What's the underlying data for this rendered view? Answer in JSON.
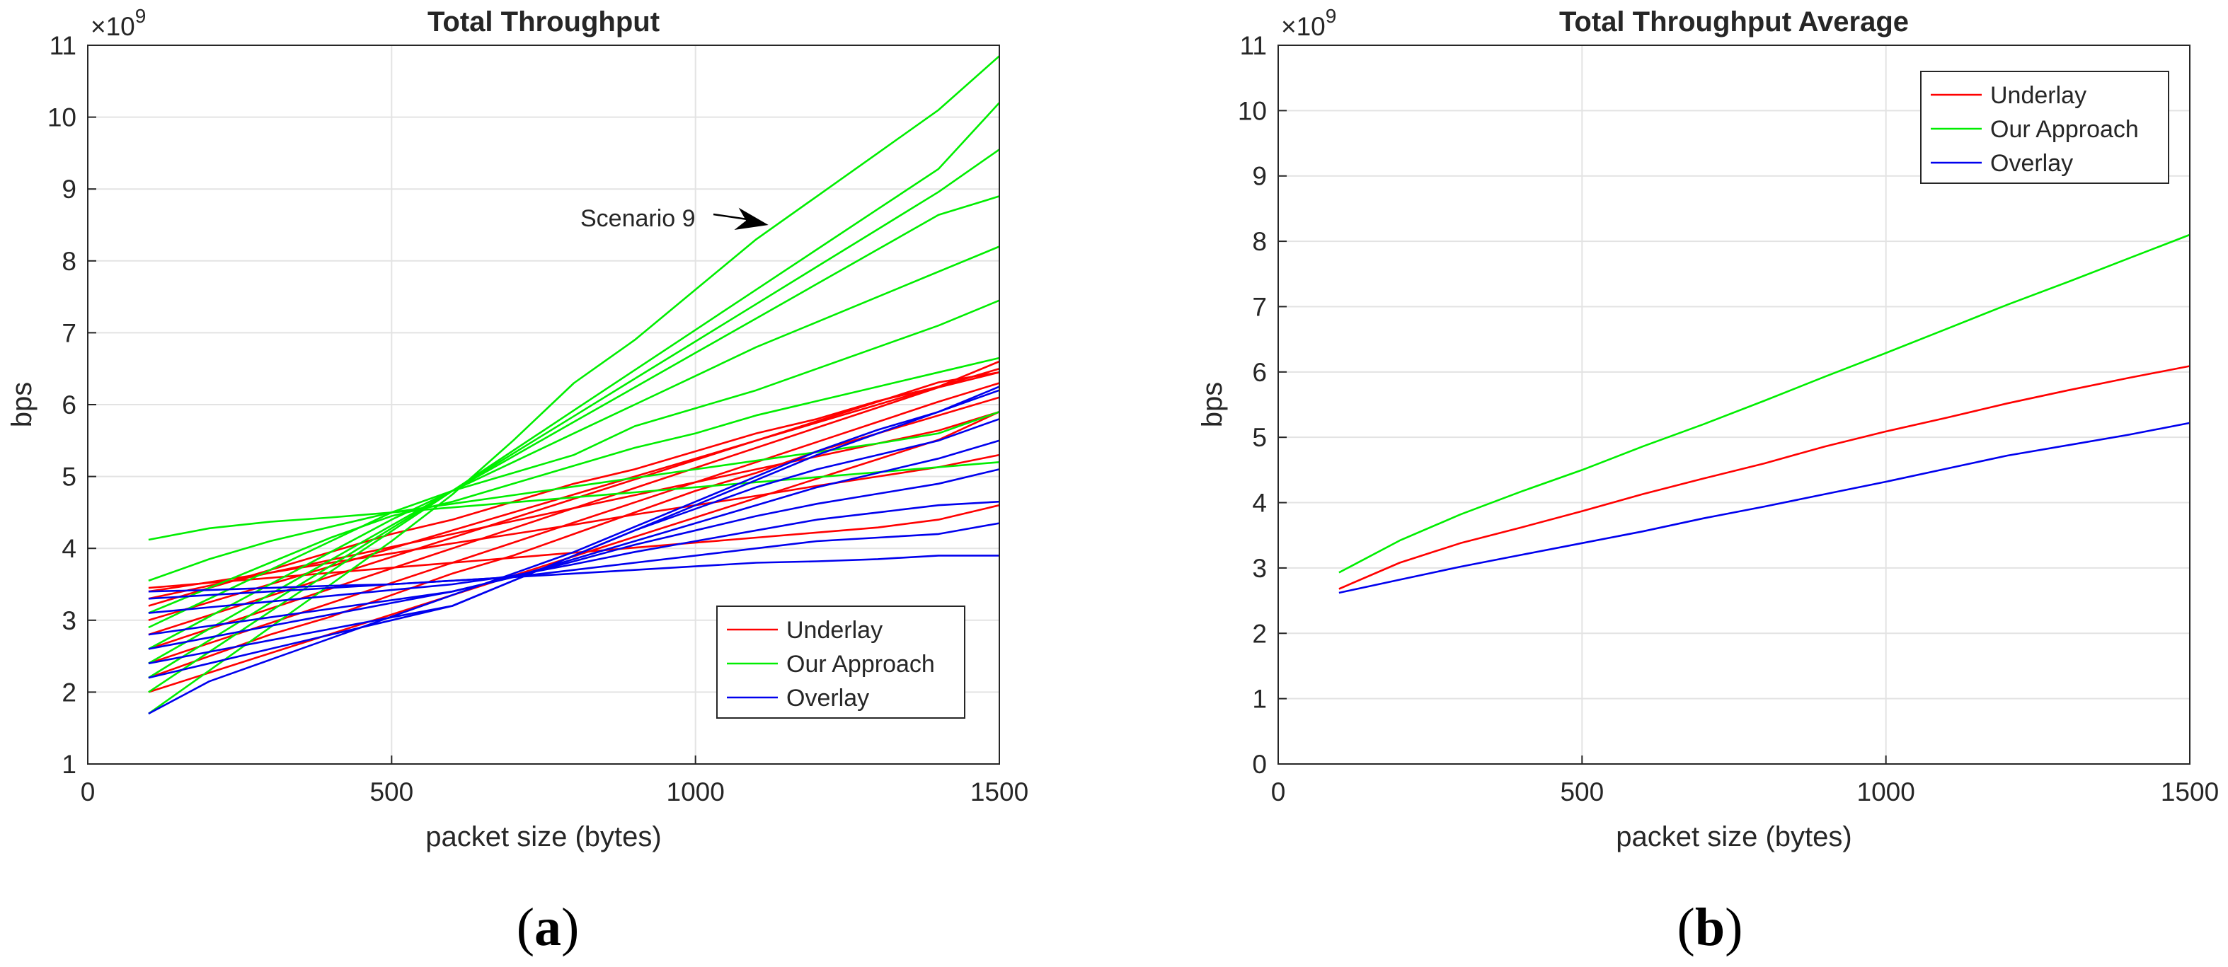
{
  "colors": {
    "underlay": "#ff0000",
    "approach": "#00ee00",
    "overlay": "#0000ee",
    "grid": "#e3e3e3",
    "axis": "#262626"
  },
  "captions": {
    "a": "a",
    "b": "b"
  },
  "chart_data": [
    {
      "type": "line",
      "title": "Total Throughput",
      "xlabel": "packet size (bytes)",
      "ylabel": "bps",
      "exponent_label": "×10",
      "exponent_power": "9",
      "xlim": [
        0,
        1500
      ],
      "ylim": [
        1,
        11
      ],
      "grid": true,
      "xticks": [
        0,
        500,
        1000,
        1500
      ],
      "yticks": [
        1,
        2,
        3,
        4,
        5,
        6,
        7,
        8,
        9,
        10,
        11
      ],
      "legend_position": "bottom-right",
      "legend": [
        {
          "name": "Underlay",
          "group": "underlay"
        },
        {
          "name": "Our Approach",
          "group": "approach"
        },
        {
          "name": "Overlay",
          "group": "overlay"
        }
      ],
      "annotation": {
        "text": "Scenario 9",
        "points_to": [
          1120,
          8.5
        ]
      },
      "x": [
        100,
        200,
        300,
        400,
        500,
        600,
        700,
        800,
        900,
        1000,
        1100,
        1200,
        1300,
        1400,
        1500
      ],
      "series": [
        {
          "name": "Underlay 1",
          "group": "underlay",
          "values": [
            3.4,
            3.53,
            3.66,
            3.8,
            3.93,
            4.07,
            4.2,
            4.33,
            4.47,
            4.6,
            4.73,
            4.87,
            5.0,
            5.13,
            5.3
          ]
        },
        {
          "name": "Underlay 2",
          "group": "underlay",
          "values": [
            3.3,
            3.48,
            3.66,
            3.84,
            4.02,
            4.2,
            4.38,
            4.56,
            4.74,
            4.92,
            5.1,
            5.28,
            5.46,
            5.64,
            5.9
          ]
        },
        {
          "name": "Underlay 3",
          "group": "underlay",
          "values": [
            3.2,
            3.45,
            3.7,
            3.95,
            4.2,
            4.4,
            4.65,
            4.9,
            5.1,
            5.35,
            5.6,
            5.8,
            6.05,
            6.25,
            6.5
          ]
        },
        {
          "name": "Underlay 4",
          "group": "underlay",
          "values": [
            3.0,
            3.25,
            3.5,
            3.75,
            4.0,
            4.25,
            4.5,
            4.75,
            5.0,
            5.25,
            5.5,
            5.75,
            6.0,
            6.25,
            6.6
          ]
        },
        {
          "name": "Underlay 5",
          "group": "underlay",
          "values": [
            2.8,
            3.07,
            3.34,
            3.61,
            3.88,
            4.15,
            4.42,
            4.69,
            4.96,
            5.23,
            5.5,
            5.77,
            6.04,
            6.31,
            6.45
          ]
        },
        {
          "name": "Underlay 6",
          "group": "underlay",
          "values": [
            2.6,
            2.88,
            3.16,
            3.44,
            3.72,
            4.0,
            4.28,
            4.56,
            4.84,
            5.12,
            5.4,
            5.68,
            5.96,
            6.24,
            6.45
          ]
        },
        {
          "name": "Underlay 7",
          "group": "underlay",
          "values": [
            2.4,
            2.68,
            2.96,
            3.24,
            3.52,
            3.8,
            4.08,
            4.36,
            4.64,
            4.92,
            5.2,
            5.48,
            5.76,
            6.04,
            6.3
          ]
        },
        {
          "name": "Underlay 8",
          "group": "underlay",
          "values": [
            2.2,
            2.5,
            2.8,
            3.05,
            3.35,
            3.65,
            3.9,
            4.2,
            4.5,
            4.8,
            5.05,
            5.35,
            5.6,
            5.85,
            6.1
          ]
        },
        {
          "name": "Underlay 9",
          "group": "underlay",
          "values": [
            2.0,
            2.27,
            2.54,
            2.81,
            3.08,
            3.35,
            3.62,
            3.89,
            4.16,
            4.43,
            4.7,
            4.97,
            5.24,
            5.51,
            5.9
          ]
        },
        {
          "name": "Underlay 10",
          "group": "underlay",
          "values": [
            3.45,
            3.52,
            3.59,
            3.66,
            3.73,
            3.8,
            3.87,
            3.94,
            4.01,
            4.08,
            4.15,
            4.22,
            4.29,
            4.4,
            4.6
          ]
        },
        {
          "name": "Approach 1",
          "group": "approach",
          "values": [
            4.12,
            4.28,
            4.37,
            4.43,
            4.5,
            4.57,
            4.64,
            4.71,
            4.78,
            4.85,
            4.92,
            4.99,
            5.06,
            5.13,
            5.2
          ]
        },
        {
          "name": "Approach 2",
          "group": "approach",
          "values": [
            3.55,
            3.85,
            4.1,
            4.3,
            4.5,
            4.62,
            4.74,
            4.86,
            4.98,
            5.1,
            5.22,
            5.34,
            5.46,
            5.6,
            5.9
          ]
        },
        {
          "name": "Approach 3",
          "group": "approach",
          "values": [
            3.1,
            3.45,
            3.8,
            4.15,
            4.45,
            4.65,
            4.9,
            5.15,
            5.4,
            5.6,
            5.85,
            6.05,
            6.25,
            6.45,
            6.65
          ]
        },
        {
          "name": "Approach 4",
          "group": "approach",
          "values": [
            2.9,
            3.3,
            3.7,
            4.1,
            4.5,
            4.8,
            5.05,
            5.3,
            5.7,
            5.95,
            6.2,
            6.5,
            6.8,
            7.1,
            7.45
          ]
        },
        {
          "name": "Approach 5",
          "group": "approach",
          "values": [
            2.6,
            3.05,
            3.5,
            3.95,
            4.4,
            4.8,
            5.2,
            5.6,
            6.0,
            6.4,
            6.8,
            7.15,
            7.5,
            7.85,
            8.2
          ]
        },
        {
          "name": "Approach 6",
          "group": "approach",
          "values": [
            2.4,
            2.88,
            3.36,
            3.84,
            4.32,
            4.8,
            5.28,
            5.76,
            6.24,
            6.72,
            7.2,
            7.68,
            8.16,
            8.64,
            8.9
          ]
        },
        {
          "name": "Approach 7",
          "group": "approach",
          "values": [
            2.2,
            2.72,
            3.24,
            3.76,
            4.28,
            4.8,
            5.32,
            5.84,
            6.36,
            6.88,
            7.4,
            7.92,
            8.44,
            8.96,
            9.55
          ]
        },
        {
          "name": "Approach 8",
          "group": "approach",
          "values": [
            2.0,
            2.56,
            3.12,
            3.68,
            4.24,
            4.8,
            5.36,
            5.92,
            6.48,
            7.04,
            7.6,
            8.16,
            8.72,
            9.28,
            10.2
          ]
        },
        {
          "name": "Approach 9 (Scenario 9)",
          "group": "approach",
          "values": [
            1.7,
            2.3,
            2.9,
            3.5,
            4.1,
            4.75,
            5.5,
            6.3,
            6.9,
            7.6,
            8.3,
            8.9,
            9.5,
            10.1,
            10.85
          ]
        },
        {
          "name": "Overlay 1",
          "group": "overlay",
          "values": [
            3.4,
            3.42,
            3.45,
            3.48,
            3.5,
            3.55,
            3.6,
            3.65,
            3.7,
            3.75,
            3.8,
            3.82,
            3.85,
            3.9,
            3.9
          ]
        },
        {
          "name": "Overlay 2",
          "group": "overlay",
          "values": [
            3.3,
            3.35,
            3.4,
            3.45,
            3.5,
            3.55,
            3.6,
            3.7,
            3.8,
            3.9,
            4.0,
            4.1,
            4.15,
            4.2,
            4.35
          ]
        },
        {
          "name": "Overlay 3",
          "group": "overlay",
          "values": [
            3.1,
            3.18,
            3.26,
            3.34,
            3.42,
            3.5,
            3.62,
            3.78,
            3.95,
            4.1,
            4.25,
            4.4,
            4.5,
            4.6,
            4.65
          ]
        },
        {
          "name": "Overlay 4",
          "group": "overlay",
          "values": [
            2.8,
            2.92,
            3.04,
            3.16,
            3.28,
            3.4,
            3.6,
            3.82,
            4.05,
            4.25,
            4.45,
            4.62,
            4.76,
            4.9,
            5.1
          ]
        },
        {
          "name": "Overlay 5",
          "group": "overlay",
          "values": [
            2.6,
            2.76,
            2.92,
            3.08,
            3.24,
            3.4,
            3.6,
            3.85,
            4.1,
            4.35,
            4.6,
            4.85,
            5.05,
            5.25,
            5.5
          ]
        },
        {
          "name": "Overlay 6",
          "group": "overlay",
          "values": [
            2.4,
            2.56,
            2.72,
            2.88,
            3.04,
            3.2,
            3.55,
            3.9,
            4.25,
            4.55,
            4.85,
            5.1,
            5.3,
            5.5,
            5.8
          ]
        },
        {
          "name": "Overlay 7",
          "group": "overlay",
          "values": [
            2.2,
            2.4,
            2.6,
            2.8,
            3.0,
            3.2,
            3.55,
            3.9,
            4.25,
            4.6,
            4.95,
            5.3,
            5.6,
            5.9,
            6.25
          ]
        },
        {
          "name": "Overlay 8",
          "group": "overlay",
          "values": [
            1.7,
            2.15,
            2.45,
            2.75,
            3.05,
            3.35,
            3.65,
            3.95,
            4.3,
            4.65,
            5.0,
            5.35,
            5.65,
            5.9,
            6.2
          ]
        }
      ]
    },
    {
      "type": "line",
      "title": "Total Throughput Average",
      "xlabel": "packet size (bytes)",
      "ylabel": "bps",
      "exponent_label": "×10",
      "exponent_power": "9",
      "xlim": [
        0,
        1500
      ],
      "ylim": [
        0,
        11
      ],
      "grid": true,
      "xticks": [
        0,
        500,
        1000,
        1500
      ],
      "yticks": [
        0,
        1,
        2,
        3,
        4,
        5,
        6,
        7,
        8,
        9,
        10,
        11
      ],
      "legend_position": "top-right",
      "legend": [
        {
          "name": "Underlay",
          "group": "underlay"
        },
        {
          "name": "Our Approach",
          "group": "approach"
        },
        {
          "name": "Overlay",
          "group": "overlay"
        }
      ],
      "x": [
        100,
        200,
        300,
        400,
        500,
        600,
        700,
        800,
        900,
        1000,
        1100,
        1200,
        1300,
        1400,
        1500
      ],
      "series": [
        {
          "name": "Underlay",
          "group": "underlay",
          "values": [
            2.68,
            3.08,
            3.38,
            3.62,
            3.87,
            4.13,
            4.37,
            4.6,
            4.86,
            5.09,
            5.3,
            5.52,
            5.72,
            5.91,
            6.09
          ]
        },
        {
          "name": "Our Approach",
          "group": "approach",
          "values": [
            2.93,
            3.42,
            3.82,
            4.17,
            4.5,
            4.86,
            5.2,
            5.56,
            5.93,
            6.29,
            6.66,
            7.03,
            7.38,
            7.74,
            8.1
          ]
        },
        {
          "name": "Overlay",
          "group": "overlay",
          "values": [
            2.62,
            2.82,
            3.02,
            3.2,
            3.38,
            3.56,
            3.76,
            3.94,
            4.13,
            4.32,
            4.52,
            4.72,
            4.88,
            5.04,
            5.22
          ]
        }
      ]
    }
  ]
}
